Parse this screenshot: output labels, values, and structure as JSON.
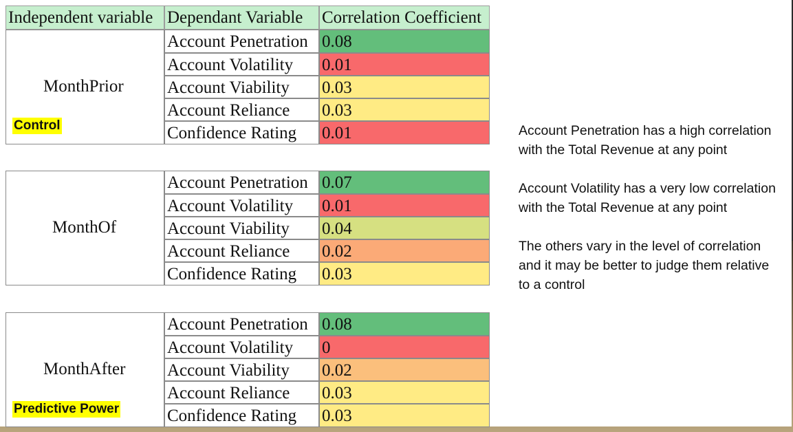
{
  "table": {
    "headers": [
      "Independent variable",
      "Dependant Variable",
      "Correlation Coefficient"
    ],
    "groups": [
      {
        "independent": "MonthPrior",
        "tag": "Control",
        "rows": [
          {
            "dependent": "Account Penetration",
            "value": "0.08",
            "color": "#63be7b"
          },
          {
            "dependent": "Account Volatility",
            "value": "0.01",
            "color": "#f8696b"
          },
          {
            "dependent": "Account Viability",
            "value": "0.03",
            "color": "#ffeb84"
          },
          {
            "dependent": "Account Reliance",
            "value": "0.03",
            "color": "#ffeb84"
          },
          {
            "dependent": "Confidence Rating",
            "value": "0.01",
            "color": "#f8696b"
          }
        ]
      },
      {
        "independent": "MonthOf",
        "tag": "",
        "rows": [
          {
            "dependent": "Account Penetration",
            "value": "0.07",
            "color": "#63be7b"
          },
          {
            "dependent": "Account Volatility",
            "value": "0.01",
            "color": "#f8696b"
          },
          {
            "dependent": "Account Viability",
            "value": "0.04",
            "color": "#d6e081"
          },
          {
            "dependent": "Account Reliance",
            "value": "0.02",
            "color": "#fbaa77"
          },
          {
            "dependent": "Confidence Rating",
            "value": "0.03",
            "color": "#ffeb84"
          }
        ]
      },
      {
        "independent": "MonthAfter",
        "tag": "Predictive Power",
        "rows": [
          {
            "dependent": "Account Penetration",
            "value": "0.08",
            "color": "#63be7b"
          },
          {
            "dependent": "Account Volatility",
            "value": "0",
            "color": "#f8696b"
          },
          {
            "dependent": "Account Viability",
            "value": "0.02",
            "color": "#fbbf7c"
          },
          {
            "dependent": "Account Reliance",
            "value": "0.03",
            "color": "#ffeb84"
          },
          {
            "dependent": "Confidence Rating",
            "value": "0.03",
            "color": "#ffeb84"
          }
        ]
      }
    ]
  },
  "notes": [
    "Account Penetration has a high correlation with the Total Revenue at any point",
    "Account Volatility has a very low correlation with the Total Revenue at any point",
    "The others vary in the level of correlation and it may be better to judge them relative to a control"
  ]
}
